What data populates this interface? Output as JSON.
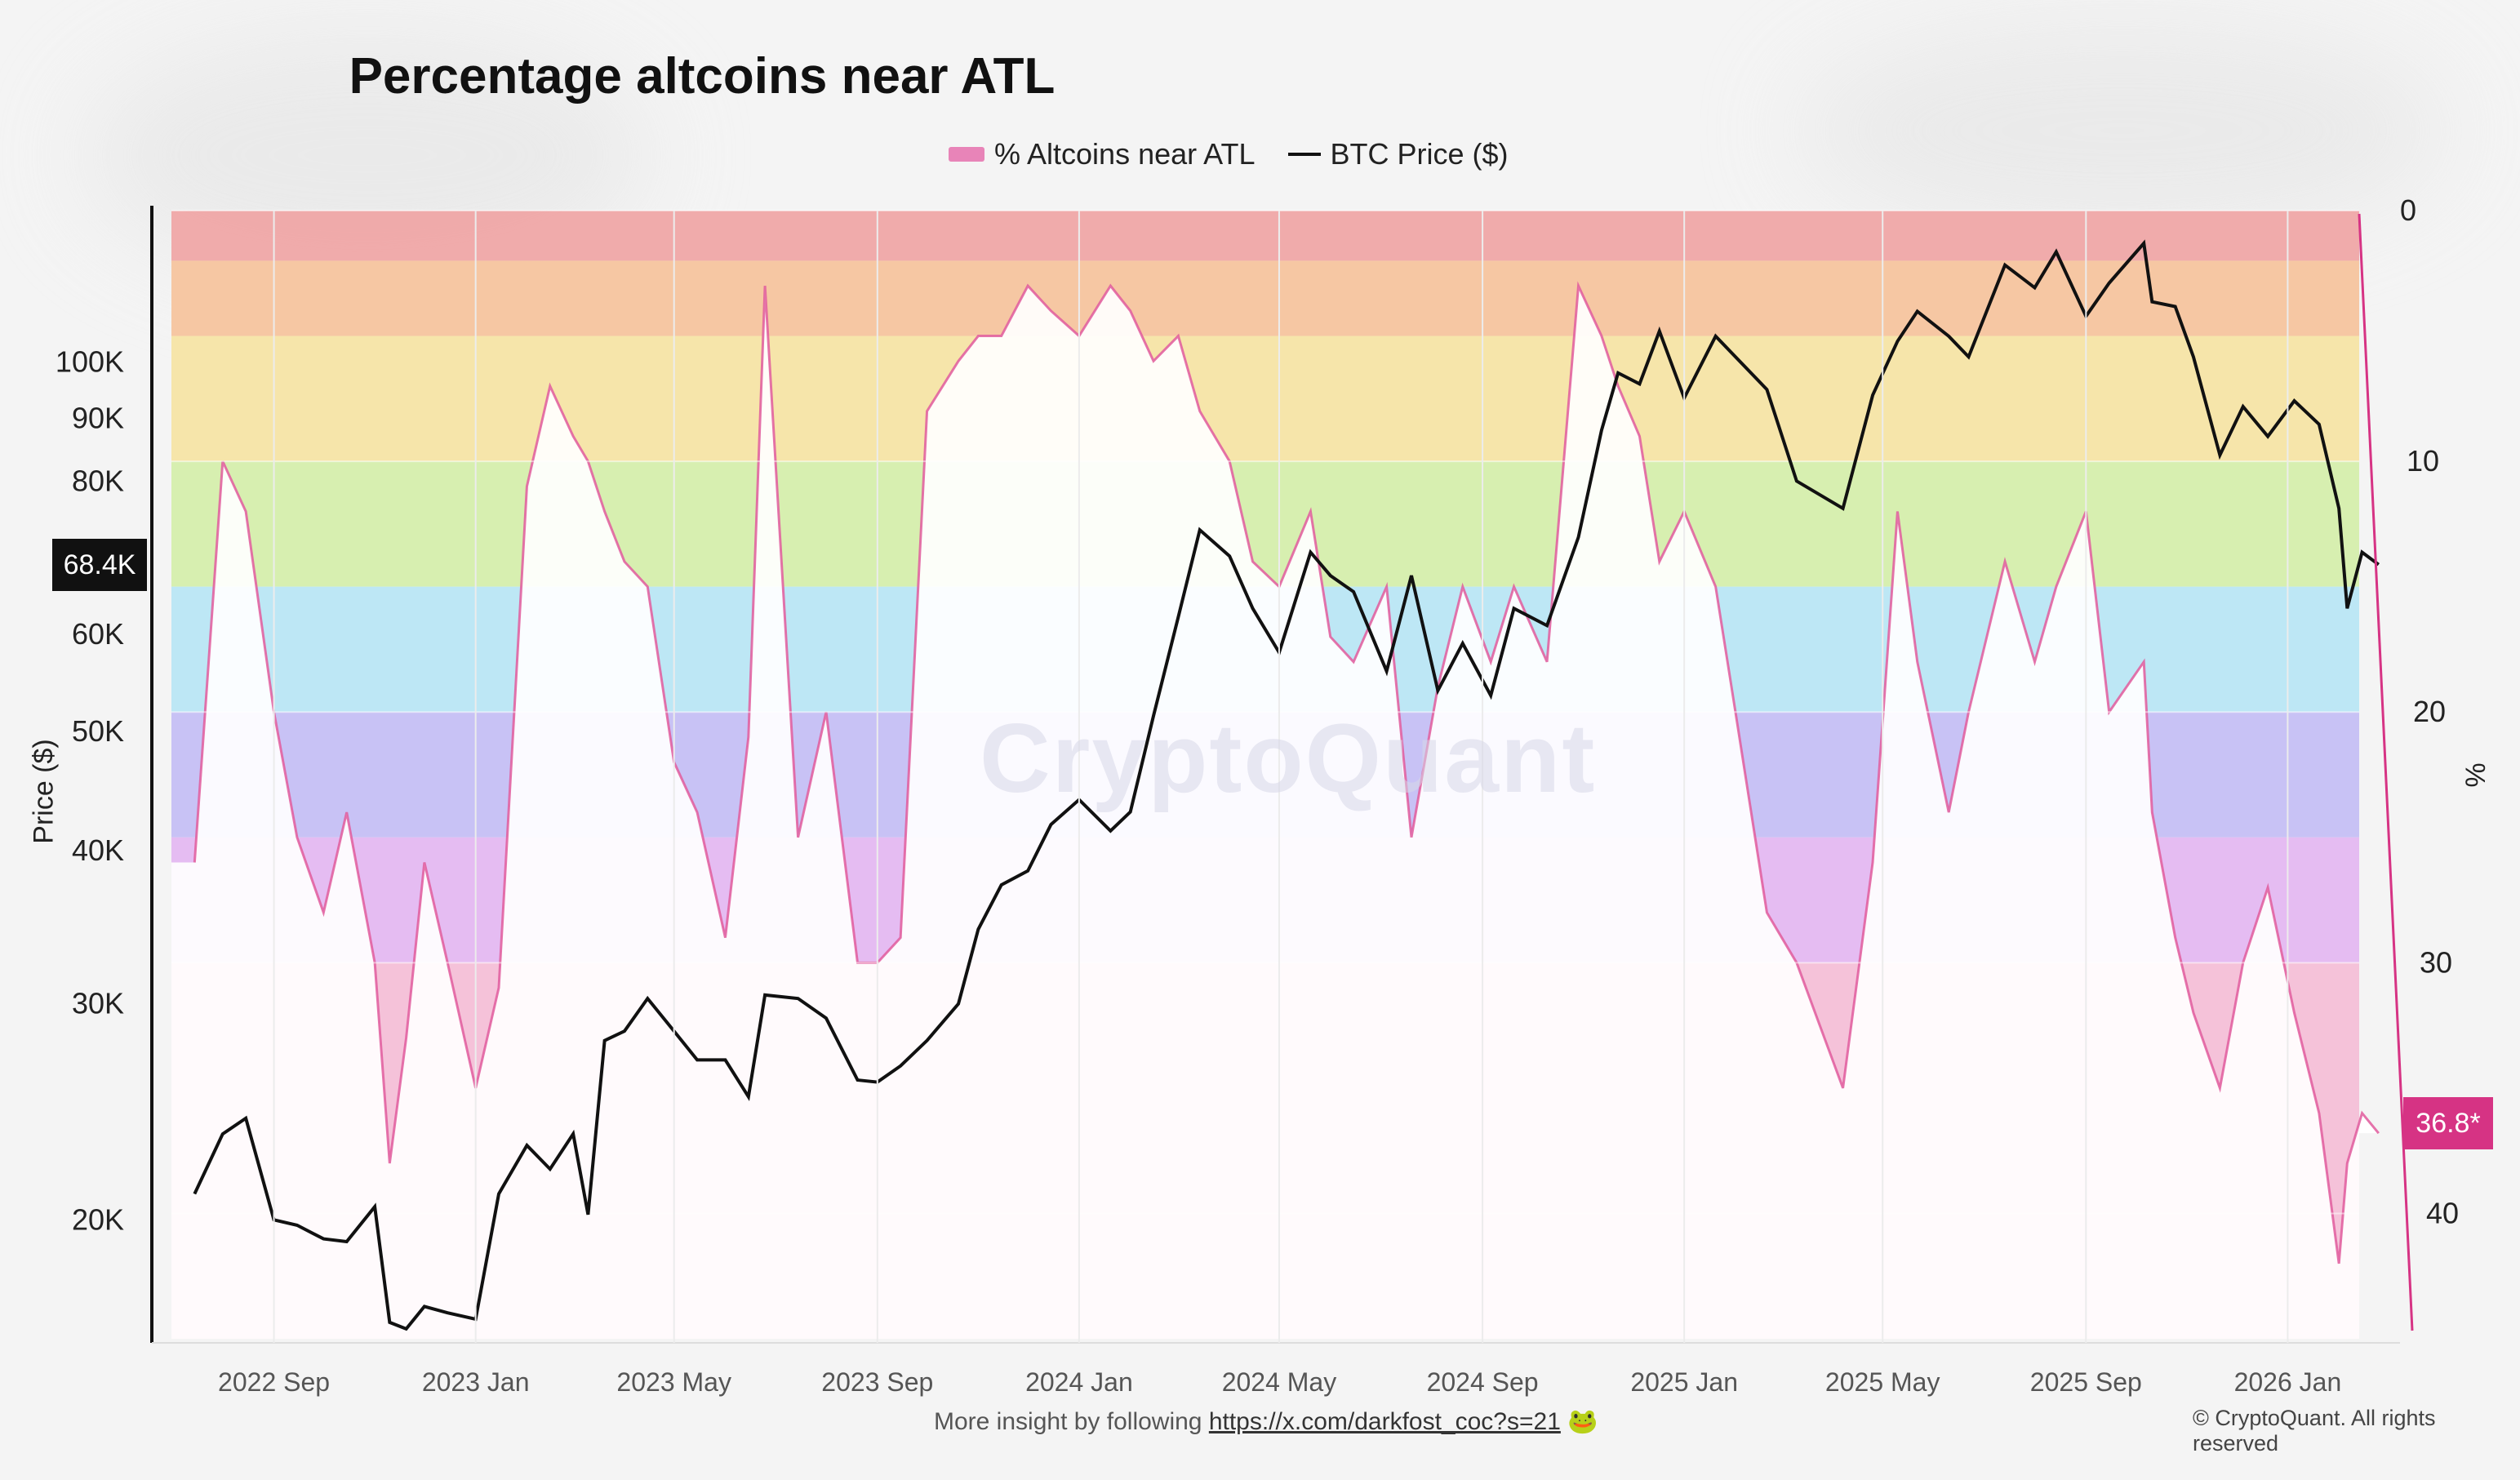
{
  "chart_data": {
    "type": "line",
    "title": "Percentage altcoins near ATL",
    "legend": {
      "placement": "top-center",
      "entries": [
        "% Altcoins near ATL",
        "BTC Price ($)"
      ]
    },
    "xlabel": "",
    "ylabel_left": "Price ($)",
    "ylabel_right": "%",
    "x_tick_labels": [
      "2022 Sep",
      "2023 Jan",
      "2023 May",
      "2023 Sep",
      "2024 Jan",
      "2024 May",
      "2024 Sep",
      "2025 Jan",
      "2025 May",
      "2025 Sep",
      "2026 Jan"
    ],
    "y_left_ticks": [
      "20K",
      "30K",
      "40K",
      "50K",
      "60K",
      "80K",
      "90K",
      "100K"
    ],
    "y_left_tick_values": [
      20000,
      30000,
      40000,
      50000,
      60000,
      80000,
      90000,
      100000
    ],
    "y_left_scale": "log",
    "y_left_range": [
      16000,
      125000
    ],
    "y_right_ticks": [
      "0",
      "10",
      "20",
      "30",
      "40"
    ],
    "y_right_tick_values": [
      0,
      10,
      20,
      30,
      40
    ],
    "y_right_range": [
      0,
      45
    ],
    "y_right_inverted": true,
    "bands": [
      {
        "from": 0,
        "to": 2,
        "color": "#efa3a3"
      },
      {
        "from": 2,
        "to": 5,
        "color": "#f6c29a"
      },
      {
        "from": 5,
        "to": 10,
        "color": "#f6e3a2"
      },
      {
        "from": 10,
        "to": 15,
        "color": "#d4eea8"
      },
      {
        "from": 15,
        "to": 20,
        "color": "#b7e6f5"
      },
      {
        "from": 20,
        "to": 25,
        "color": "#c3bdf5"
      },
      {
        "from": 25,
        "to": 30,
        "color": "#e3b6f2"
      },
      {
        "from": 30,
        "to": 45,
        "color": "#f5bcd6"
      }
    ],
    "series": [
      {
        "name": "BTC Price ($)",
        "color": "#111111",
        "x": [
          "2022-07-15",
          "2022-08-01",
          "2022-08-15",
          "2022-09-01",
          "2022-09-15",
          "2022-10-01",
          "2022-10-15",
          "2022-11-01",
          "2022-11-10",
          "2022-11-20",
          "2022-12-01",
          "2022-12-15",
          "2023-01-01",
          "2023-01-15",
          "2023-02-01",
          "2023-02-15",
          "2023-03-01",
          "2023-03-10",
          "2023-03-20",
          "2023-04-01",
          "2023-04-15",
          "2023-05-01",
          "2023-05-15",
          "2023-06-01",
          "2023-06-15",
          "2023-06-25",
          "2023-07-15",
          "2023-08-01",
          "2023-08-20",
          "2023-09-01",
          "2023-09-15",
          "2023-10-01",
          "2023-10-20",
          "2023-11-01",
          "2023-11-15",
          "2023-12-01",
          "2023-12-15",
          "2024-01-01",
          "2024-01-20",
          "2024-02-01",
          "2024-02-15",
          "2024-03-01",
          "2024-03-14",
          "2024-04-01",
          "2024-04-15",
          "2024-05-01",
          "2024-05-20",
          "2024-06-01",
          "2024-06-15",
          "2024-07-05",
          "2024-07-20",
          "2024-08-05",
          "2024-08-20",
          "2024-09-06",
          "2024-09-20",
          "2024-10-10",
          "2024-10-29",
          "2024-11-12",
          "2024-11-22",
          "2024-12-05",
          "2024-12-17",
          "2025-01-01",
          "2025-01-20",
          "2025-02-01",
          "2025-02-20",
          "2025-03-10",
          "2025-04-07",
          "2025-04-25",
          "2025-05-10",
          "2025-05-22",
          "2025-06-10",
          "2025-06-22",
          "2025-07-14",
          "2025-08-01",
          "2025-08-14",
          "2025-09-01",
          "2025-09-15",
          "2025-10-06",
          "2025-10-11",
          "2025-10-25",
          "2025-11-05",
          "2025-11-21",
          "2025-12-05",
          "2025-12-20",
          "2026-01-05",
          "2026-01-20",
          "2026-02-01",
          "2026-02-06",
          "2026-02-15",
          "2026-02-25"
        ],
        "values": [
          21000,
          23500,
          24200,
          20000,
          19800,
          19300,
          19200,
          20500,
          16500,
          16300,
          17000,
          16800,
          16600,
          21000,
          23000,
          22000,
          23500,
          20200,
          28000,
          28500,
          30300,
          28500,
          27000,
          27000,
          25200,
          30500,
          30300,
          29200,
          26000,
          25900,
          26700,
          28000,
          30000,
          34500,
          37500,
          38500,
          42000,
          44000,
          41500,
          43000,
          51500,
          62000,
          73000,
          69500,
          63000,
          58000,
          70000,
          67000,
          65000,
          56000,
          67000,
          54000,
          59000,
          53500,
          63000,
          61000,
          72000,
          88000,
          98000,
          96000,
          106000,
          93500,
          105000,
          101000,
          95000,
          80000,
          76000,
          94000,
          104000,
          110000,
          105000,
          101000,
          120000,
          115000,
          123000,
          109000,
          116000,
          125000,
          112000,
          111000,
          101000,
          84000,
          92000,
          87000,
          93000,
          89000,
          76000,
          63000,
          70000,
          68400
        ]
      },
      {
        "name": "% Altcoins near ATL",
        "color": "#e05a9c",
        "x": [
          "2022-07-15",
          "2022-08-01",
          "2022-08-15",
          "2022-09-01",
          "2022-09-15",
          "2022-10-01",
          "2022-10-15",
          "2022-11-01",
          "2022-11-10",
          "2022-11-20",
          "2022-12-01",
          "2022-12-15",
          "2023-01-01",
          "2023-01-15",
          "2023-02-01",
          "2023-02-15",
          "2023-03-01",
          "2023-03-10",
          "2023-03-20",
          "2023-04-01",
          "2023-04-15",
          "2023-05-01",
          "2023-05-15",
          "2023-06-01",
          "2023-06-15",
          "2023-06-25",
          "2023-07-15",
          "2023-08-01",
          "2023-08-20",
          "2023-09-01",
          "2023-09-15",
          "2023-10-01",
          "2023-10-20",
          "2023-11-01",
          "2023-11-15",
          "2023-12-01",
          "2023-12-15",
          "2024-01-01",
          "2024-01-20",
          "2024-02-01",
          "2024-02-15",
          "2024-03-01",
          "2024-03-14",
          "2024-04-01",
          "2024-04-15",
          "2024-05-01",
          "2024-05-20",
          "2024-06-01",
          "2024-06-15",
          "2024-07-05",
          "2024-07-20",
          "2024-08-05",
          "2024-08-20",
          "2024-09-06",
          "2024-09-20",
          "2024-10-10",
          "2024-10-29",
          "2024-11-12",
          "2024-11-22",
          "2024-12-05",
          "2024-12-17",
          "2025-01-01",
          "2025-01-20",
          "2025-02-01",
          "2025-02-20",
          "2025-03-10",
          "2025-04-07",
          "2025-04-25",
          "2025-05-10",
          "2025-05-22",
          "2025-06-10",
          "2025-06-22",
          "2025-07-14",
          "2025-08-01",
          "2025-08-14",
          "2025-09-01",
          "2025-09-15",
          "2025-10-06",
          "2025-10-11",
          "2025-10-25",
          "2025-11-05",
          "2025-11-21",
          "2025-12-05",
          "2025-12-20",
          "2026-01-05",
          "2026-01-20",
          "2026-02-01",
          "2026-02-06",
          "2026-02-15",
          "2026-02-25"
        ],
        "values": [
          26,
          10,
          12,
          20,
          25,
          28,
          24,
          30,
          38,
          33,
          26,
          30,
          35,
          31,
          11,
          7,
          9,
          10,
          12,
          14,
          15,
          22,
          24,
          29,
          21,
          3,
          25,
          20,
          30,
          30,
          29,
          8,
          6,
          5,
          5,
          3,
          4,
          5,
          3,
          4,
          6,
          5,
          8,
          10,
          14,
          15,
          12,
          17,
          18,
          15,
          25,
          19,
          15,
          18,
          15,
          18,
          3,
          5,
          7,
          9,
          14,
          12,
          15,
          20,
          28,
          30,
          35,
          26,
          12,
          18,
          24,
          20,
          14,
          18,
          15,
          12,
          20,
          18,
          24,
          29,
          32,
          35,
          30,
          27,
          32,
          36,
          42,
          38,
          36,
          36.8
        ]
      }
    ],
    "last_value_badges": {
      "btc": "68.4K",
      "pct": "36.8*"
    }
  },
  "watermark": "CryptoQuant",
  "footer": {
    "prefix": "More insight by following ",
    "link": "https://x.com/darkfost_coc?s=21",
    "emoji": "🐸"
  },
  "copyright": "© CryptoQuant. All rights reserved"
}
